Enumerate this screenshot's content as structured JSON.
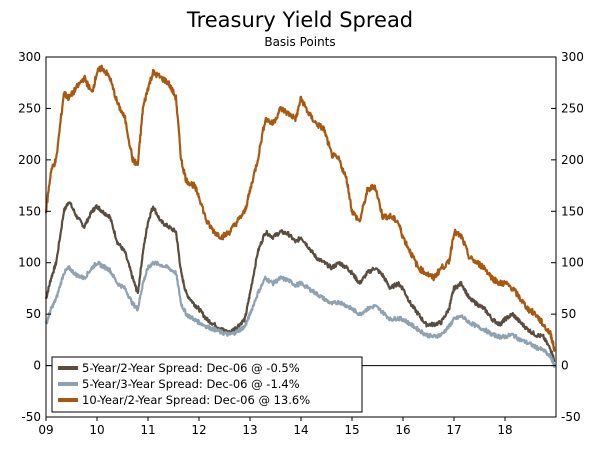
{
  "chart_data": {
    "type": "line",
    "title": "Treasury Yield Spread",
    "subtitle": "Basis Points",
    "xlabel": "",
    "ylabel": "",
    "xlim": [
      2009,
      2019
    ],
    "ylim": [
      -50,
      300
    ],
    "y_ticks": [
      "300",
      "250",
      "200",
      "150",
      "100",
      "50",
      "0",
      "-50"
    ],
    "x_ticks": [
      "09",
      "10",
      "11",
      "12",
      "13",
      "14",
      "15",
      "16",
      "17",
      "18"
    ],
    "legend_position": "bottom-left",
    "series": [
      {
        "name": "5-Year/2-Year Spread: Dec-06 @ -0.5%",
        "color": "#5a4d3f",
        "x": [
          2009.0,
          2009.1,
          2009.2,
          2009.35,
          2009.45,
          2009.6,
          2009.75,
          2009.9,
          2010.0,
          2010.1,
          2010.25,
          2010.4,
          2010.55,
          2010.7,
          2010.8,
          2010.9,
          2011.0,
          2011.1,
          2011.25,
          2011.4,
          2011.55,
          2011.65,
          2011.75,
          2011.9,
          2012.0,
          2012.15,
          2012.3,
          2012.45,
          2012.6,
          2012.75,
          2012.9,
          2013.0,
          2013.15,
          2013.3,
          2013.45,
          2013.6,
          2013.75,
          2013.9,
          2014.0,
          2014.15,
          2014.3,
          2014.45,
          2014.6,
          2014.75,
          2014.9,
          2015.0,
          2015.15,
          2015.3,
          2015.45,
          2015.6,
          2015.75,
          2015.9,
          2016.0,
          2016.15,
          2016.3,
          2016.45,
          2016.6,
          2016.75,
          2016.9,
          2017.0,
          2017.15,
          2017.3,
          2017.45,
          2017.6,
          2017.75,
          2017.9,
          2018.0,
          2018.15,
          2018.3,
          2018.45,
          2018.6,
          2018.75,
          2018.9,
          2018.97
        ],
        "values": [
          65,
          85,
          100,
          150,
          160,
          145,
          135,
          150,
          155,
          150,
          145,
          120,
          110,
          85,
          70,
          110,
          140,
          155,
          140,
          135,
          130,
          90,
          70,
          60,
          55,
          45,
          40,
          35,
          32,
          38,
          45,
          70,
          110,
          130,
          125,
          130,
          128,
          120,
          125,
          115,
          105,
          100,
          95,
          100,
          95,
          90,
          80,
          90,
          95,
          88,
          75,
          80,
          75,
          60,
          50,
          40,
          40,
          42,
          55,
          75,
          80,
          65,
          60,
          55,
          45,
          40,
          45,
          50,
          42,
          35,
          30,
          28,
          15,
          5
        ]
      },
      {
        "name": "5-Year/3-Year Spread: Dec-06 @ -1.4%",
        "color": "#8ea2b2",
        "x": [
          2009.0,
          2009.1,
          2009.2,
          2009.35,
          2009.45,
          2009.6,
          2009.75,
          2009.9,
          2010.0,
          2010.1,
          2010.25,
          2010.4,
          2010.55,
          2010.7,
          2010.8,
          2010.9,
          2011.0,
          2011.1,
          2011.25,
          2011.4,
          2011.55,
          2011.65,
          2011.75,
          2011.9,
          2012.0,
          2012.15,
          2012.3,
          2012.45,
          2012.6,
          2012.75,
          2012.9,
          2013.0,
          2013.15,
          2013.3,
          2013.45,
          2013.6,
          2013.75,
          2013.9,
          2014.0,
          2014.15,
          2014.3,
          2014.45,
          2014.6,
          2014.75,
          2014.9,
          2015.0,
          2015.15,
          2015.3,
          2015.45,
          2015.6,
          2015.75,
          2015.9,
          2016.0,
          2016.15,
          2016.3,
          2016.45,
          2016.6,
          2016.75,
          2016.9,
          2017.0,
          2017.15,
          2017.3,
          2017.45,
          2017.6,
          2017.75,
          2017.9,
          2018.0,
          2018.15,
          2018.3,
          2018.45,
          2018.6,
          2018.75,
          2018.9,
          2018.97
        ],
        "values": [
          40,
          55,
          65,
          90,
          95,
          88,
          85,
          95,
          100,
          97,
          93,
          80,
          75,
          60,
          55,
          80,
          95,
          100,
          98,
          95,
          90,
          60,
          50,
          45,
          42,
          38,
          35,
          32,
          30,
          33,
          38,
          50,
          70,
          85,
          80,
          85,
          83,
          78,
          80,
          75,
          70,
          65,
          60,
          62,
          58,
          55,
          50,
          55,
          58,
          52,
          45,
          46,
          45,
          40,
          35,
          30,
          28,
          30,
          38,
          45,
          48,
          42,
          38,
          35,
          30,
          28,
          28,
          30,
          25,
          22,
          18,
          15,
          8,
          0
        ]
      },
      {
        "name": "10-Year/2-Year Spread: Dec-06 @ 13.6%",
        "color": "#a8580f",
        "x": [
          2009.0,
          2009.1,
          2009.2,
          2009.35,
          2009.45,
          2009.6,
          2009.75,
          2009.9,
          2010.0,
          2010.1,
          2010.25,
          2010.4,
          2010.55,
          2010.7,
          2010.8,
          2010.9,
          2011.0,
          2011.1,
          2011.25,
          2011.4,
          2011.55,
          2011.65,
          2011.75,
          2011.9,
          2012.0,
          2012.15,
          2012.3,
          2012.45,
          2012.6,
          2012.75,
          2012.9,
          2013.0,
          2013.15,
          2013.3,
          2013.45,
          2013.6,
          2013.75,
          2013.9,
          2014.0,
          2014.15,
          2014.3,
          2014.45,
          2014.6,
          2014.75,
          2014.9,
          2015.0,
          2015.15,
          2015.3,
          2015.45,
          2015.6,
          2015.75,
          2015.9,
          2016.0,
          2016.15,
          2016.3,
          2016.45,
          2016.6,
          2016.75,
          2016.9,
          2017.0,
          2017.15,
          2017.3,
          2017.45,
          2017.6,
          2017.75,
          2017.9,
          2018.0,
          2018.15,
          2018.3,
          2018.45,
          2018.6,
          2018.75,
          2018.9,
          2018.97
        ],
        "values": [
          150,
          190,
          200,
          265,
          260,
          270,
          280,
          265,
          285,
          290,
          280,
          255,
          240,
          200,
          195,
          250,
          270,
          285,
          280,
          275,
          260,
          200,
          180,
          175,
          165,
          140,
          130,
          125,
          130,
          140,
          150,
          170,
          200,
          240,
          235,
          250,
          245,
          240,
          260,
          245,
          235,
          230,
          205,
          200,
          180,
          150,
          140,
          170,
          175,
          145,
          145,
          140,
          125,
          110,
          95,
          90,
          85,
          95,
          100,
          130,
          125,
          105,
          100,
          95,
          85,
          80,
          80,
          75,
          65,
          55,
          50,
          40,
          30,
          15
        ]
      }
    ]
  }
}
